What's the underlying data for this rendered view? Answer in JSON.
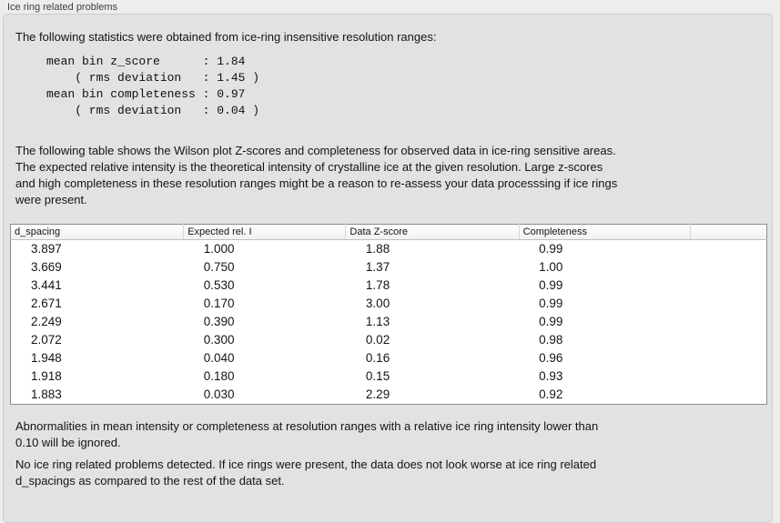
{
  "panel": {
    "title": "Ice ring related problems"
  },
  "intro_text": "The following statistics were obtained from ice-ring insensitive resolution ranges:",
  "stats_block": "mean bin z_score      : 1.84\n    ( rms deviation   : 1.45 )\nmean bin completeness : 0.97\n    ( rms deviation   : 0.04 )",
  "stats": {
    "mean_bin_z_score": "1.84",
    "z_score_rms_deviation": "1.45",
    "mean_bin_completeness": "0.97",
    "completeness_rms_deviation": "0.04"
  },
  "table_description": "The following table shows the Wilson plot Z-scores and completeness for observed data in ice-ring sensitive areas.\nThe expected relative intensity is the theoretical intensity of crystalline ice at the given resolution. Large z-scores\nand high completeness in these resolution ranges might be a reason to re-assess your data processsing if ice rings\nwere present.",
  "table": {
    "columns": [
      "d_spacing",
      "Expected rel. I",
      "Data Z-score",
      "Completeness",
      ""
    ],
    "rows": [
      [
        "3.897",
        "1.000",
        "1.88",
        "0.99"
      ],
      [
        "3.669",
        "0.750",
        "1.37",
        "1.00"
      ],
      [
        "3.441",
        "0.530",
        "1.78",
        "0.99"
      ],
      [
        "2.671",
        "0.170",
        "3.00",
        "0.99"
      ],
      [
        "2.249",
        "0.390",
        "1.13",
        "0.99"
      ],
      [
        "2.072",
        "0.300",
        "0.02",
        "0.98"
      ],
      [
        "1.948",
        "0.040",
        "0.16",
        "0.96"
      ],
      [
        "1.918",
        "0.180",
        "0.15",
        "0.93"
      ],
      [
        "1.883",
        "0.030",
        "2.29",
        "0.92"
      ]
    ]
  },
  "note_ignore": "Abnormalities in mean intensity or completeness at resolution ranges with a relative ice ring intensity lower than\n0.10 will be ignored.",
  "note_result": "No ice ring related problems detected. If ice rings were present, the data does not look worse at ice ring related\nd_spacings as compared to the rest of the data set."
}
